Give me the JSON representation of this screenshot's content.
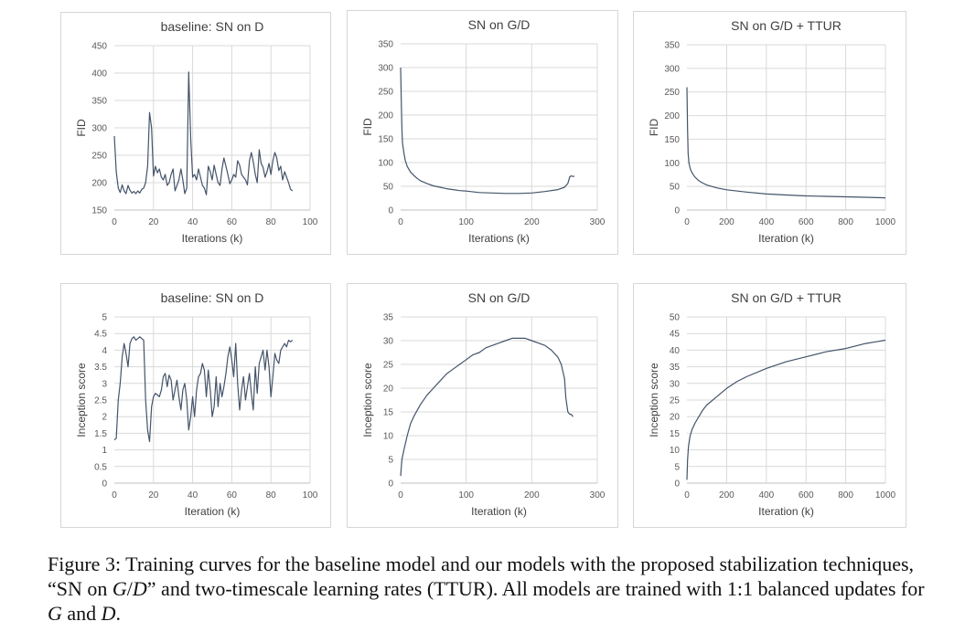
{
  "colors": {
    "series": "#44546a",
    "grid": "#d9d9d9",
    "panel_border": "#d6d6d6"
  },
  "caption": {
    "label": "Figure 3:",
    "part1": "Training curves for the baseline model and our models with the proposed stabilization techniques, “SN on ",
    "m1": "G",
    "slash": "/",
    "m2": "D",
    "part2": "” and two-timescale learning rates (TTUR). All models are trained with 1:1 balanced updates for ",
    "m3": "G",
    "and": " and ",
    "m4": "D",
    "end": "."
  },
  "chart_data": [
    {
      "type": "line",
      "title": "baseline: SN on D",
      "xlabel": "Iterations (k)",
      "ylabel": "FID",
      "xlim": [
        0,
        100
      ],
      "ylim": [
        150,
        450
      ],
      "xticks": [
        0,
        20,
        40,
        60,
        80,
        100
      ],
      "yticks": [
        150,
        200,
        250,
        300,
        350,
        400,
        450
      ],
      "grid": true,
      "x": [
        0,
        1,
        2,
        3,
        4,
        5,
        6,
        7,
        8,
        9,
        10,
        11,
        12,
        13,
        14,
        15,
        16,
        17,
        18,
        19,
        20,
        21,
        22,
        23,
        24,
        25,
        26,
        27,
        28,
        29,
        30,
        31,
        32,
        33,
        34,
        35,
        36,
        37,
        38,
        39,
        40,
        41,
        42,
        43,
        44,
        45,
        46,
        47,
        48,
        49,
        50,
        51,
        52,
        53,
        54,
        55,
        56,
        57,
        58,
        59,
        60,
        61,
        62,
        63,
        64,
        65,
        66,
        67,
        68,
        69,
        70,
        71,
        72,
        73,
        74,
        75,
        76,
        77,
        78,
        79,
        80,
        81,
        82,
        83,
        84,
        85,
        86,
        87,
        88,
        89,
        90,
        91
      ],
      "y": [
        285,
        220,
        190,
        182,
        196,
        185,
        180,
        195,
        186,
        181,
        184,
        180,
        185,
        181,
        188,
        190,
        200,
        230,
        328,
        300,
        212,
        230,
        218,
        225,
        210,
        205,
        215,
        195,
        200,
        215,
        225,
        185,
        195,
        205,
        225,
        205,
        180,
        190,
        402,
        280,
        210,
        215,
        205,
        225,
        210,
        195,
        190,
        178,
        230,
        220,
        205,
        232,
        215,
        200,
        195,
        225,
        245,
        230,
        215,
        198,
        205,
        215,
        210,
        240,
        232,
        215,
        210,
        205,
        196,
        240,
        255,
        238,
        215,
        200,
        260,
        235,
        228,
        210,
        220,
        235,
        215,
        240,
        255,
        245,
        222,
        230,
        205,
        220,
        210,
        200,
        188,
        185
      ]
    },
    {
      "type": "line",
      "title": "SN on G/D",
      "xlabel": "Iterations (k)",
      "ylabel": "FID",
      "xlim": [
        0,
        300
      ],
      "ylim": [
        0,
        350
      ],
      "xticks": [
        0,
        100,
        200,
        300
      ],
      "yticks": [
        0,
        50,
        100,
        150,
        200,
        250,
        300,
        350
      ],
      "grid": true,
      "x": [
        0,
        1,
        2,
        3,
        5,
        7,
        10,
        15,
        20,
        25,
        30,
        40,
        50,
        60,
        70,
        80,
        90,
        100,
        120,
        140,
        160,
        180,
        200,
        220,
        240,
        250,
        255,
        258,
        260,
        262,
        265
      ],
      "y": [
        300,
        230,
        170,
        140,
        120,
        105,
        92,
        80,
        73,
        67,
        62,
        56,
        51,
        48,
        45,
        43,
        41,
        40,
        37,
        36,
        35,
        35,
        36,
        39,
        43,
        48,
        56,
        70,
        72,
        71,
        71
      ]
    },
    {
      "type": "line",
      "title": "SN on G/D + TTUR",
      "xlabel": "Iteration (k)",
      "ylabel": "FID",
      "xlim": [
        0,
        1000
      ],
      "ylim": [
        0,
        350
      ],
      "xticks": [
        0,
        200,
        400,
        600,
        800,
        1000
      ],
      "yticks": [
        0,
        50,
        100,
        150,
        200,
        250,
        300,
        350
      ],
      "grid": true,
      "x": [
        0,
        3,
        6,
        10,
        15,
        20,
        30,
        40,
        60,
        80,
        100,
        150,
        200,
        300,
        400,
        500,
        600,
        700,
        800,
        900,
        1000
      ],
      "y": [
        260,
        170,
        120,
        100,
        90,
        84,
        76,
        70,
        62,
        57,
        53,
        47,
        43,
        38,
        34,
        32,
        30,
        29,
        28,
        27,
        26
      ]
    },
    {
      "type": "line",
      "title": "baseline: SN on D",
      "xlabel": "Iteration (k)",
      "ylabel": "Inception score",
      "xlim": [
        0,
        100
      ],
      "ylim": [
        0,
        5
      ],
      "xticks": [
        0,
        20,
        40,
        60,
        80,
        100
      ],
      "yticks": [
        0,
        0.5,
        1,
        1.5,
        2,
        2.5,
        3,
        3.5,
        4,
        4.5,
        5
      ],
      "grid": true,
      "x": [
        0,
        1,
        2,
        3,
        4,
        5,
        6,
        7,
        8,
        9,
        10,
        11,
        12,
        13,
        14,
        15,
        16,
        17,
        18,
        19,
        20,
        21,
        22,
        23,
        24,
        25,
        26,
        27,
        28,
        29,
        30,
        31,
        32,
        33,
        34,
        35,
        36,
        37,
        38,
        39,
        40,
        41,
        42,
        43,
        44,
        45,
        46,
        47,
        48,
        49,
        50,
        51,
        52,
        53,
        54,
        55,
        56,
        57,
        58,
        59,
        60,
        61,
        62,
        63,
        64,
        65,
        66,
        67,
        68,
        69,
        70,
        71,
        72,
        73,
        74,
        75,
        76,
        77,
        78,
        79,
        80,
        81,
        82,
        83,
        84,
        85,
        86,
        87,
        88,
        89,
        90,
        91
      ],
      "y": [
        1.3,
        1.35,
        2.5,
        3,
        3.8,
        4.2,
        3.9,
        3.5,
        4.2,
        4.35,
        4.4,
        4.3,
        4.35,
        4.4,
        4.35,
        4.3,
        2.5,
        1.6,
        1.25,
        2.3,
        2.6,
        2.7,
        2.65,
        2.6,
        2.8,
        3.2,
        3.3,
        2.9,
        3.25,
        3.1,
        2.5,
        2.8,
        3.1,
        2.6,
        2.2,
        2.8,
        3.0,
        2.5,
        1.6,
        2.0,
        2.6,
        2.0,
        2.8,
        3.2,
        3.3,
        3.6,
        3.4,
        2.6,
        3.4,
        2.8,
        2.0,
        2.3,
        3.2,
        2.3,
        3.0,
        2.6,
        2.9,
        3.3,
        3.8,
        4.1,
        3.7,
        3.2,
        4.2,
        3.0,
        2.2,
        2.8,
        3.2,
        2.5,
        2.9,
        3.3,
        2.7,
        2.2,
        3.5,
        2.7,
        3.6,
        3.8,
        4.0,
        3.4,
        4.0,
        3.5,
        2.6,
        3.2,
        3.9,
        3.7,
        3.6,
        4.0,
        4.1,
        4.2,
        4.1,
        4.3,
        4.25,
        4.3
      ]
    },
    {
      "type": "line",
      "title": "SN on G/D",
      "xlabel": "Iteration (k)",
      "ylabel": "Inception score",
      "xlim": [
        0,
        300
      ],
      "ylim": [
        0,
        35
      ],
      "xticks": [
        0,
        100,
        200,
        300
      ],
      "yticks": [
        0,
        5,
        10,
        15,
        20,
        25,
        30,
        35
      ],
      "grid": true,
      "x": [
        0,
        2,
        5,
        10,
        15,
        20,
        30,
        40,
        50,
        60,
        70,
        80,
        90,
        100,
        110,
        120,
        130,
        140,
        150,
        160,
        170,
        180,
        190,
        200,
        210,
        220,
        230,
        240,
        245,
        250,
        252,
        255,
        258,
        260,
        263
      ],
      "y": [
        1.5,
        5,
        7,
        10,
        12.5,
        14,
        16.5,
        18.5,
        20,
        21.5,
        23,
        24,
        25,
        26,
        27,
        27.5,
        28.5,
        29,
        29.5,
        30,
        30.5,
        30.5,
        30.5,
        30,
        29.5,
        29,
        28,
        26.5,
        25,
        22,
        18,
        15,
        14.5,
        14.5,
        14
      ]
    },
    {
      "type": "line",
      "title": "SN on G/D + TTUR",
      "xlabel": "Iteration (k)",
      "ylabel": "Inception score",
      "xlim": [
        0,
        1000
      ],
      "ylim": [
        0,
        50
      ],
      "xticks": [
        0,
        200,
        400,
        600,
        800,
        1000
      ],
      "yticks": [
        0,
        5,
        10,
        15,
        20,
        25,
        30,
        35,
        40,
        45,
        50
      ],
      "grid": true,
      "x": [
        0,
        3,
        8,
        15,
        25,
        40,
        60,
        80,
        100,
        150,
        200,
        250,
        300,
        400,
        500,
        600,
        700,
        800,
        900,
        950,
        1000
      ],
      "y": [
        1,
        7,
        11,
        14,
        16,
        18,
        20,
        22,
        23.5,
        26,
        28.5,
        30.5,
        32,
        34.5,
        36.5,
        38,
        39.5,
        40.5,
        42,
        42.5,
        43
      ]
    }
  ]
}
